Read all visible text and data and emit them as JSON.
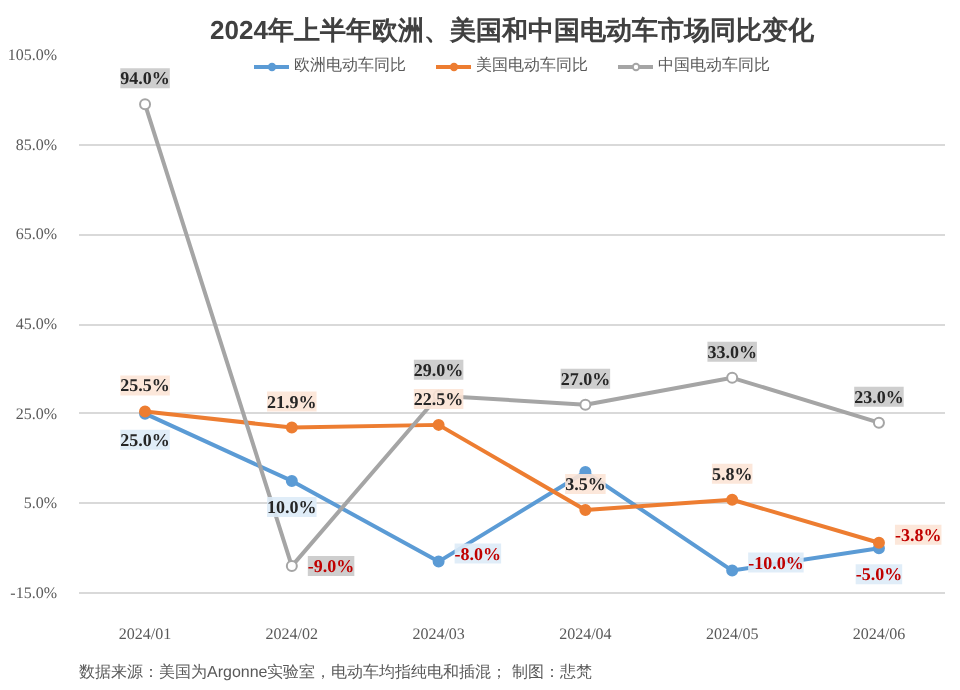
{
  "chart_data": {
    "type": "line",
    "title": "2024年上半年欧洲、美国和中国电动车市场同比变化",
    "categories": [
      "2024/01",
      "2024/02",
      "2024/03",
      "2024/04",
      "2024/05",
      "2024/06"
    ],
    "series": [
      {
        "name": "欧洲电动车同比",
        "color": "#5b9bd5",
        "values": [
          25.0,
          10.0,
          -8.0,
          12.0,
          -10.0,
          -5.0
        ],
        "value_labels": [
          "25.0%",
          "10.0%",
          "-8.0%",
          null,
          "-10.0%",
          "-5.0%"
        ]
      },
      {
        "name": "美国电动车同比",
        "color": "#ed7d31",
        "values": [
          25.5,
          21.9,
          22.5,
          3.5,
          5.8,
          -3.8
        ],
        "value_labels": [
          "25.5%",
          "21.9%",
          "22.5%",
          "3.5%",
          "5.8%",
          "-3.8%"
        ]
      },
      {
        "name": "中国电动车同比",
        "color": "#a5a5a5",
        "values": [
          94.0,
          -9.0,
          29.0,
          27.0,
          33.0,
          23.0
        ],
        "value_labels": [
          "94.0%",
          "-9.0%",
          "29.0%",
          "27.0%",
          "33.0%",
          "23.0%"
        ]
      }
    ],
    "ylim": [
      -15,
      105
    ],
    "yticks": [
      {
        "value": -15,
        "label": "-15.0%"
      },
      {
        "value": 5,
        "label": "5.0%"
      },
      {
        "value": 25,
        "label": "25.0%"
      },
      {
        "value": 45,
        "label": "45.0%"
      },
      {
        "value": 65,
        "label": "65.0%"
      },
      {
        "value": 85,
        "label": "85.0%"
      },
      {
        "value": 105,
        "label": "105.0%"
      }
    ],
    "grid": "y",
    "legend": "top",
    "marker": "circle",
    "line_style": "solid",
    "annotations": [
      "数据来源：美国为Argonne实验室，电动车均指纯电和插混；",
      "制图：悲梵"
    ]
  }
}
